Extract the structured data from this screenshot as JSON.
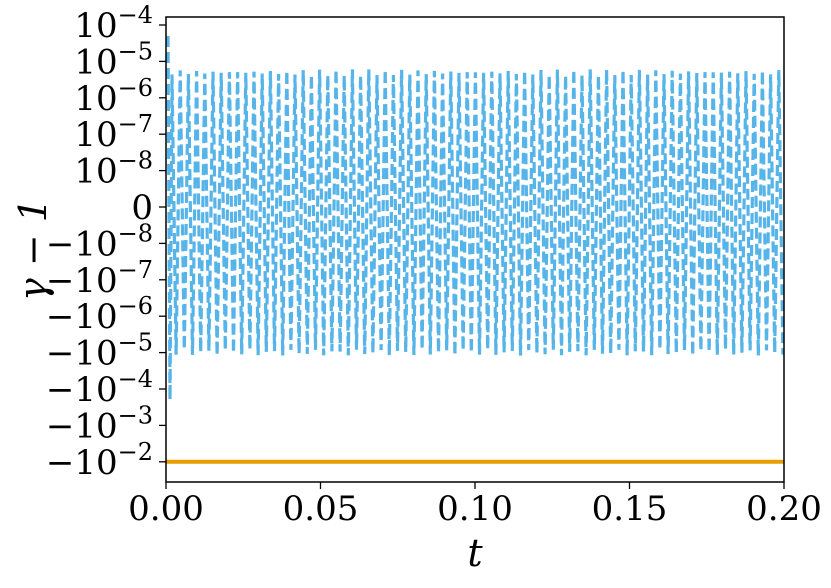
{
  "chart_data": {
    "type": "line",
    "xlabel": "t",
    "ylabel": "γ − 1",
    "xlim": [
      0.0,
      0.2
    ],
    "x_ticks": [
      "0.00",
      "0.05",
      "0.10",
      "0.15",
      "0.20"
    ],
    "y_scale": "symlog",
    "y_ticks": [
      {
        "base": "10",
        "exp": "−4",
        "value": 0.0001
      },
      {
        "base": "10",
        "exp": "−5",
        "value": 1e-05
      },
      {
        "base": "10",
        "exp": "−6",
        "value": 1e-06
      },
      {
        "base": "10",
        "exp": "−7",
        "value": 1e-07
      },
      {
        "base": "10",
        "exp": "−8",
        "value": 1e-08
      },
      {
        "base": "0",
        "exp": "",
        "value": 0
      },
      {
        "base": "−10",
        "exp": "−8",
        "value": -1e-08
      },
      {
        "base": "−10",
        "exp": "−7",
        "value": -1e-07
      },
      {
        "base": "−10",
        "exp": "−6",
        "value": -1e-06
      },
      {
        "base": "−10",
        "exp": "−5",
        "value": -1e-05
      },
      {
        "base": "−10",
        "exp": "−4",
        "value": -0.0001
      },
      {
        "base": "−10",
        "exp": "−3",
        "value": -0.001
      },
      {
        "base": "−10",
        "exp": "−2",
        "value": -0.01
      }
    ],
    "series": [
      {
        "color": "#56b4e9",
        "style": "dashed",
        "description_values": {
          "oscillation_upper": 5e-06,
          "oscillation_lower": -1e-05,
          "initial_peak": 5e-05,
          "initial_trough": -0.0002
        }
      },
      {
        "color": "#e69f00",
        "style": "solid",
        "constant_value": -0.01
      }
    ],
    "grid": false,
    "legend": "none"
  }
}
